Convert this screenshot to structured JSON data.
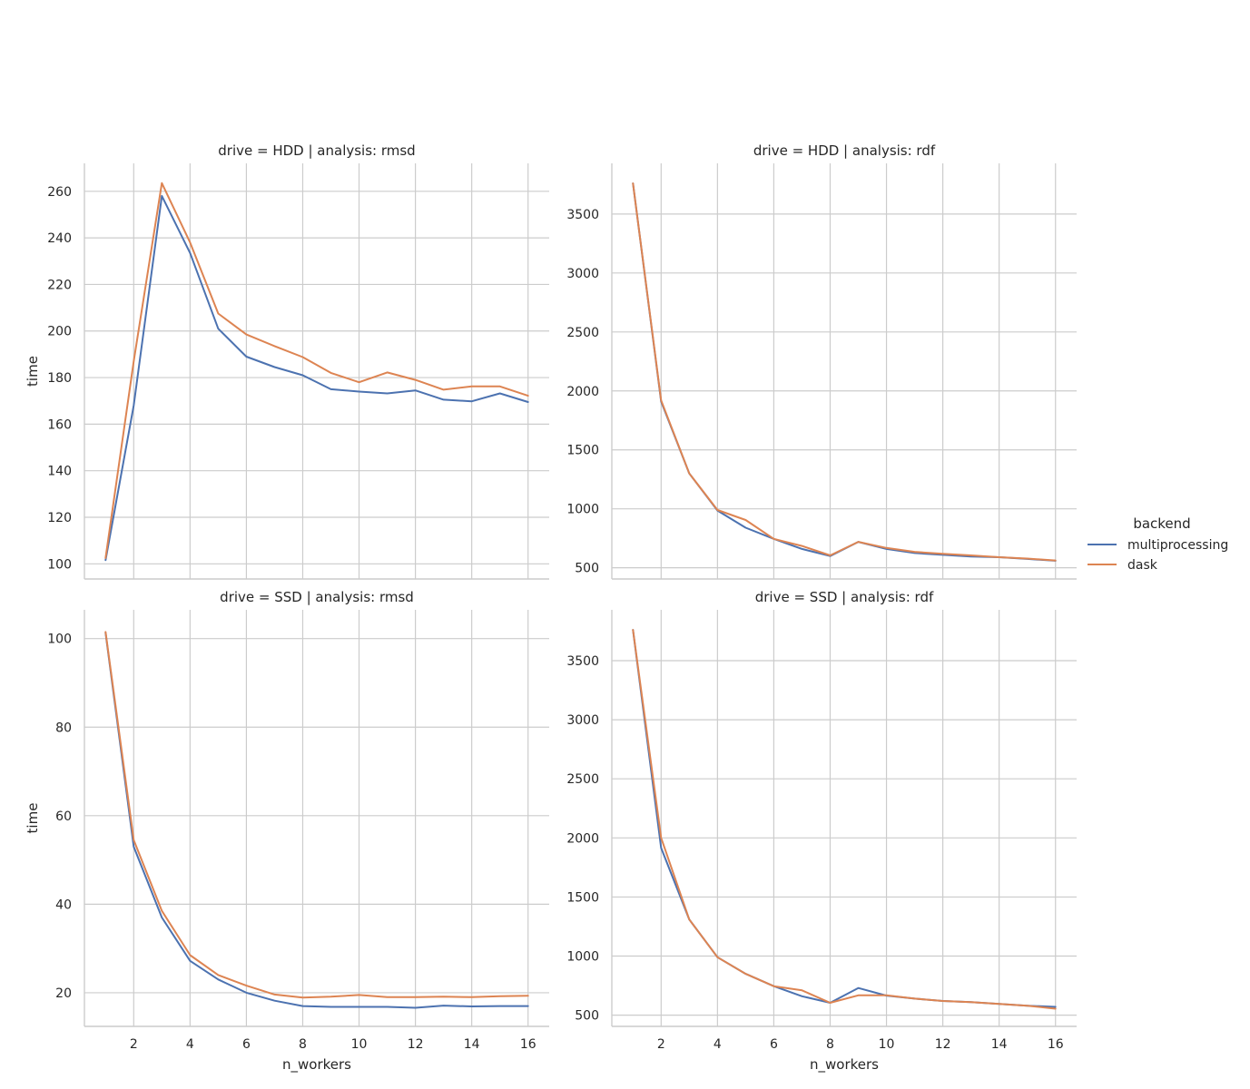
{
  "legend": {
    "title": "backend",
    "entries": [
      {
        "label": "multiprocessing",
        "color": "#4c72b0"
      },
      {
        "label": "dask",
        "color": "#dd8452"
      }
    ],
    "placement": "center-right"
  },
  "chart_data": [
    {
      "type": "line",
      "title": "drive = HDD | analysis: rmsd",
      "xlabel": "",
      "ylabel": "time",
      "xlim": [
        0.25,
        16.75
      ],
      "ylim": [
        93.5,
        272
      ],
      "xticks": [
        2,
        4,
        6,
        8,
        10,
        12,
        14,
        16
      ],
      "xtick_labels_shown": false,
      "yticks": [
        100,
        120,
        140,
        160,
        180,
        200,
        220,
        240,
        260
      ],
      "grid": true,
      "x": [
        1,
        2,
        3,
        4,
        5,
        6,
        7,
        8,
        9,
        10,
        11,
        12,
        13,
        14,
        15,
        16
      ],
      "series": [
        {
          "name": "multiprocessing",
          "color": "#4c72b0",
          "values": [
            101.6,
            168,
            258,
            233.5,
            201,
            189,
            184.5,
            181,
            175,
            174,
            173.2,
            174.5,
            170.5,
            169.8,
            173.2,
            169.5
          ]
        },
        {
          "name": "dask",
          "color": "#dd8452",
          "values": [
            102.5,
            187,
            263.5,
            238,
            207.5,
            198.5,
            193.5,
            188.8,
            182,
            178,
            182.2,
            179,
            174.8,
            176.2,
            176.2,
            172.2
          ]
        }
      ]
    },
    {
      "type": "line",
      "title": "drive = HDD | analysis: rdf",
      "xlabel": "",
      "ylabel": "",
      "xlim": [
        0.25,
        16.75
      ],
      "ylim": [
        405,
        3930
      ],
      "xticks": [
        2,
        4,
        6,
        8,
        10,
        12,
        14,
        16
      ],
      "xtick_labels_shown": false,
      "yticks": [
        500,
        1000,
        1500,
        2000,
        2500,
        3000,
        3500
      ],
      "grid": true,
      "x": [
        1,
        2,
        3,
        4,
        5,
        6,
        7,
        8,
        9,
        10,
        11,
        12,
        13,
        14,
        15,
        16
      ],
      "series": [
        {
          "name": "multiprocessing",
          "color": "#4c72b0",
          "values": [
            3760,
            1910,
            1300,
            985,
            840,
            745,
            660,
            600,
            720,
            660,
            625,
            610,
            595,
            590,
            575,
            560
          ]
        },
        {
          "name": "dask",
          "color": "#dd8452",
          "values": [
            3760,
            1920,
            1300,
            990,
            905,
            745,
            685,
            605,
            720,
            668,
            635,
            618,
            605,
            590,
            578,
            562
          ]
        }
      ]
    },
    {
      "type": "line",
      "title": "drive = SSD | analysis: rmsd",
      "xlabel": "n_workers",
      "ylabel": "time",
      "xlim": [
        0.25,
        16.75
      ],
      "ylim": [
        12.4,
        106.5
      ],
      "xticks": [
        2,
        4,
        6,
        8,
        10,
        12,
        14,
        16
      ],
      "xtick_labels_shown": true,
      "yticks": [
        20,
        40,
        60,
        80,
        100
      ],
      "grid": true,
      "x": [
        1,
        2,
        3,
        4,
        5,
        6,
        7,
        8,
        9,
        10,
        11,
        12,
        13,
        14,
        15,
        16
      ],
      "series": [
        {
          "name": "multiprocessing",
          "color": "#4c72b0",
          "values": [
            101.3,
            53,
            37,
            27.2,
            23,
            20,
            18.2,
            17,
            16.8,
            16.8,
            16.8,
            16.6,
            17.1,
            16.9,
            17.0,
            17.0
          ]
        },
        {
          "name": "dask",
          "color": "#dd8452",
          "values": [
            101.5,
            54.5,
            38.5,
            28.5,
            24,
            21.6,
            19.6,
            18.9,
            19.1,
            19.5,
            19.0,
            19.0,
            19.1,
            19.0,
            19.2,
            19.3
          ]
        }
      ]
    },
    {
      "type": "line",
      "title": "drive = SSD | analysis: rdf",
      "xlabel": "n_workers",
      "ylabel": "",
      "xlim": [
        0.25,
        16.75
      ],
      "ylim": [
        405,
        3930
      ],
      "xticks": [
        2,
        4,
        6,
        8,
        10,
        12,
        14,
        16
      ],
      "xtick_labels_shown": true,
      "yticks": [
        500,
        1000,
        1500,
        2000,
        2500,
        3000,
        3500
      ],
      "grid": true,
      "x": [
        1,
        2,
        3,
        4,
        5,
        6,
        7,
        8,
        9,
        10,
        11,
        12,
        13,
        14,
        15,
        16
      ],
      "series": [
        {
          "name": "multiprocessing",
          "color": "#4c72b0",
          "values": [
            3760,
            1915,
            1310,
            990,
            850,
            745,
            660,
            605,
            730,
            665,
            640,
            620,
            610,
            595,
            580,
            570
          ]
        },
        {
          "name": "dask",
          "color": "#dd8452",
          "values": [
            3760,
            2000,
            1310,
            990,
            850,
            745,
            710,
            605,
            668,
            668,
            640,
            620,
            610,
            595,
            580,
            555
          ]
        }
      ]
    }
  ]
}
